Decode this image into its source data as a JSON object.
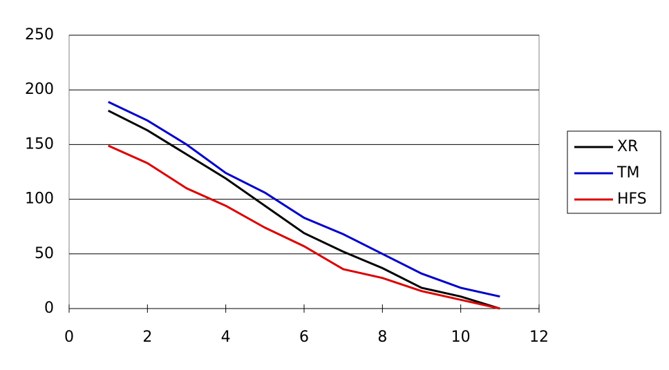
{
  "chart_data": {
    "type": "line",
    "x": [
      1,
      2,
      3,
      4,
      5,
      6,
      7,
      8,
      9,
      10,
      11
    ],
    "series": [
      {
        "name": "XR",
        "color": "#000000",
        "values": [
          181,
          163,
          141,
          119,
          94,
          69,
          52,
          37,
          19,
          11,
          0
        ]
      },
      {
        "name": "TM",
        "color": "#0000cc",
        "values": [
          189,
          172,
          150,
          124,
          106,
          83,
          68,
          50,
          32,
          19,
          11
        ]
      },
      {
        "name": "HFS",
        "color": "#dd0000",
        "values": [
          149,
          133,
          110,
          94,
          74,
          57,
          36,
          28,
          16,
          8,
          0
        ]
      }
    ],
    "xlim": [
      0,
      12
    ],
    "xticks": [
      0,
      2,
      4,
      6,
      8,
      10,
      12
    ],
    "ylim": [
      0,
      250
    ],
    "yticks": [
      0,
      50,
      100,
      150,
      200,
      250
    ],
    "grid": true,
    "legend": "right"
  }
}
